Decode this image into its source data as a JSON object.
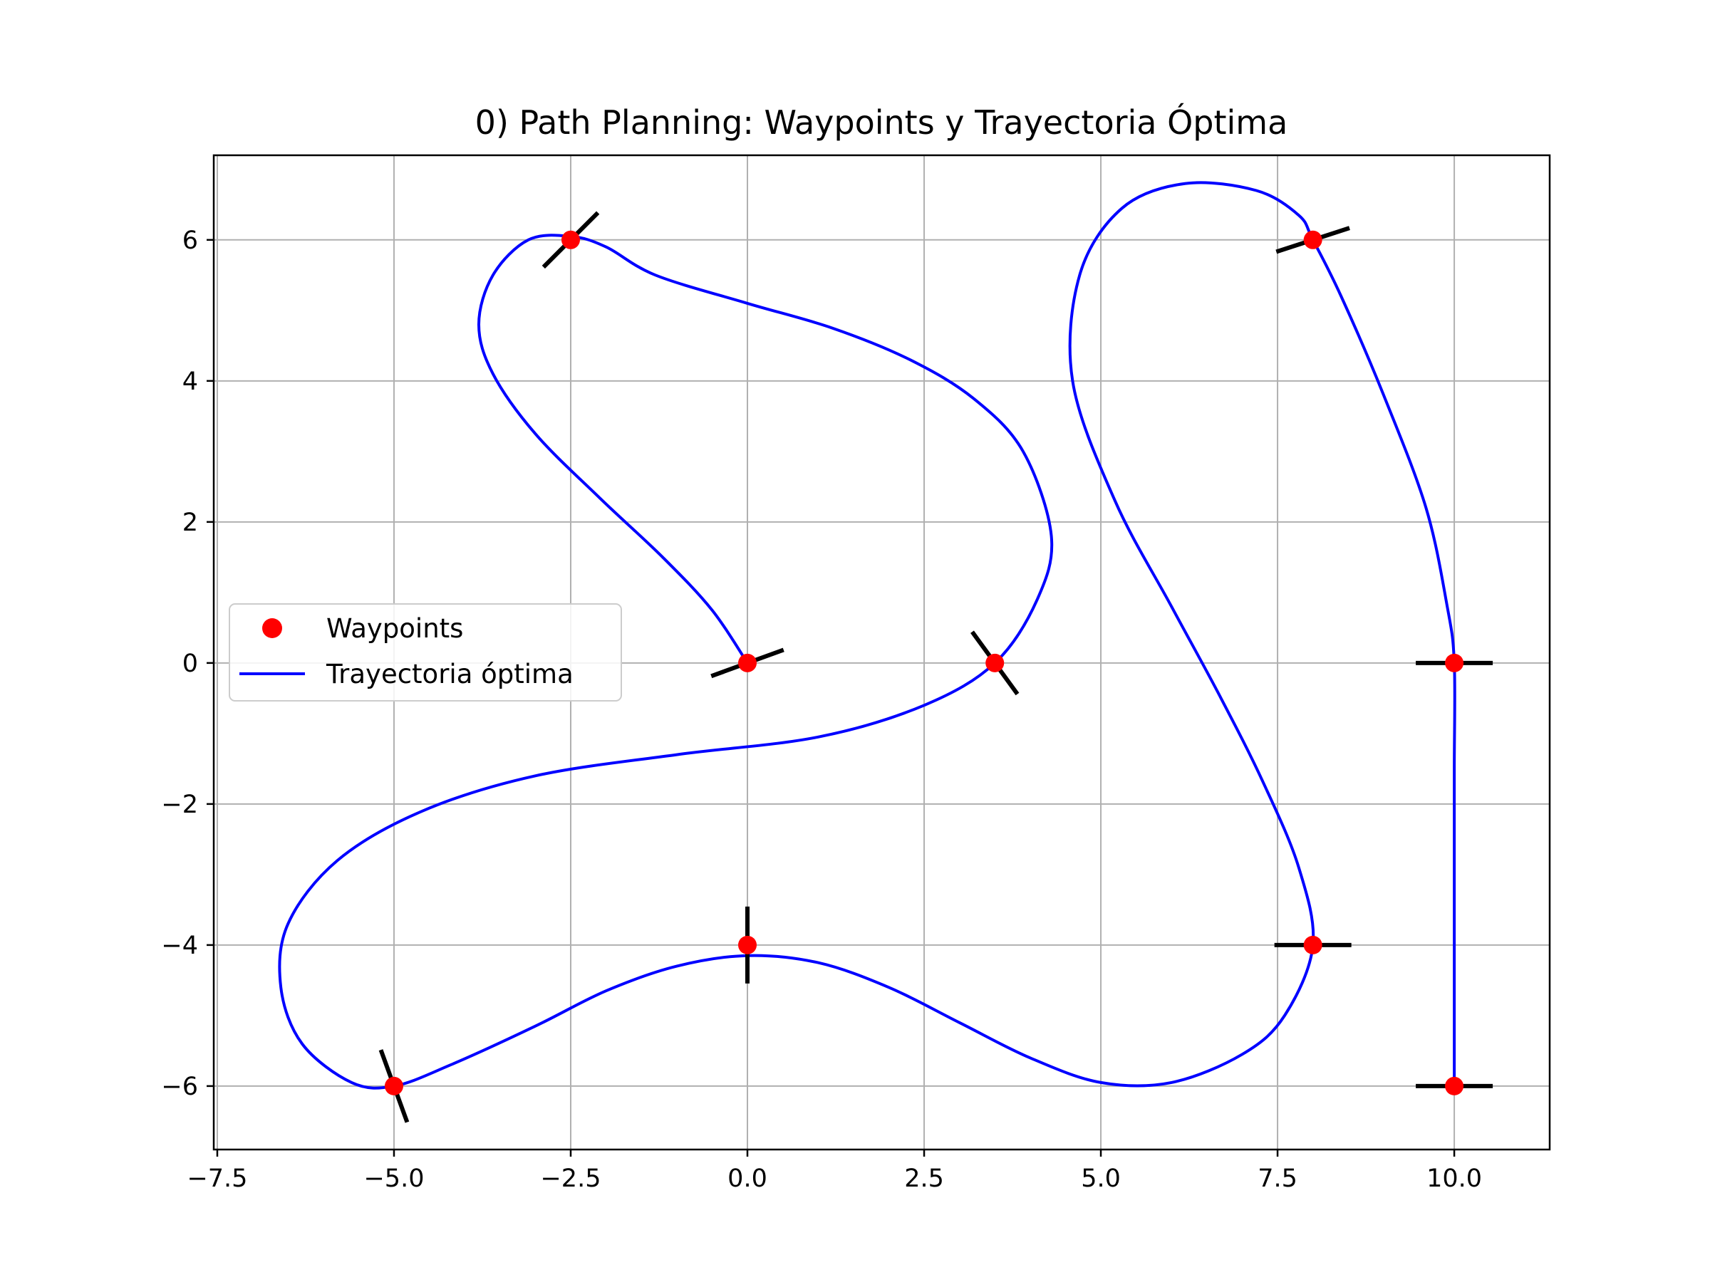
{
  "chart_data": {
    "type": "line",
    "title": "0) Path Planning: Waypoints y Trayectoria Óptima",
    "xlabel": "",
    "ylabel": "",
    "xlim": [
      -7.55,
      11.35
    ],
    "ylim": [
      -6.9,
      7.2
    ],
    "grid": true,
    "legend_placement": "center-left",
    "x_ticks": [
      -7.5,
      -5.0,
      -2.5,
      0.0,
      2.5,
      5.0,
      7.5,
      10.0
    ],
    "x_tick_labels": [
      "−7.5",
      "−5.0",
      "−2.5",
      "0.0",
      "2.5",
      "5.0",
      "7.5",
      "10.0"
    ],
    "y_ticks": [
      -6,
      -4,
      -2,
      0,
      2,
      4,
      6
    ],
    "y_tick_labels": [
      "−6",
      "−4",
      "−2",
      "0",
      "2",
      "4",
      "6"
    ],
    "colors": {
      "waypoints": "#ff0000",
      "trajectory": "#0000ff",
      "headings": "#000000"
    },
    "series": [
      {
        "name": "Waypoints",
        "kind": "scatter",
        "points": [
          {
            "x": 0.0,
            "y": 0.0,
            "heading_deg": 20
          },
          {
            "x": -2.5,
            "y": 6.0,
            "heading_deg": 45
          },
          {
            "x": 3.5,
            "y": 0.0,
            "heading_deg": -54
          },
          {
            "x": -5.0,
            "y": -6.0,
            "heading_deg": -70
          },
          {
            "x": 0.0,
            "y": -4.0,
            "heading_deg": 90
          },
          {
            "x": 8.0,
            "y": -4.0,
            "heading_deg": 0
          },
          {
            "x": 8.0,
            "y": 6.0,
            "heading_deg": 18
          },
          {
            "x": 10.0,
            "y": 0.0,
            "heading_deg": 0
          },
          {
            "x": 10.0,
            "y": -6.0,
            "heading_deg": 0
          }
        ]
      },
      {
        "name": "Trayectoria óptima",
        "kind": "line",
        "points": [
          [
            0.0,
            0.0
          ],
          [
            -0.5,
            0.75
          ],
          [
            -1.2,
            1.5
          ],
          [
            -2.1,
            2.35
          ],
          [
            -3.0,
            3.25
          ],
          [
            -3.6,
            4.1
          ],
          [
            -3.8,
            4.8
          ],
          [
            -3.6,
            5.5
          ],
          [
            -3.1,
            6.0
          ],
          [
            -2.5,
            6.05
          ],
          [
            -2.0,
            5.9
          ],
          [
            -1.3,
            5.5
          ],
          [
            0.0,
            5.1
          ],
          [
            1.2,
            4.75
          ],
          [
            2.3,
            4.3
          ],
          [
            3.2,
            3.75
          ],
          [
            3.9,
            3.0
          ],
          [
            4.3,
            1.8
          ],
          [
            4.1,
            0.9
          ],
          [
            3.5,
            0.0
          ],
          [
            2.5,
            -0.6
          ],
          [
            1.0,
            -1.05
          ],
          [
            -1.0,
            -1.3
          ],
          [
            -3.0,
            -1.6
          ],
          [
            -4.6,
            -2.1
          ],
          [
            -5.8,
            -2.8
          ],
          [
            -6.5,
            -3.7
          ],
          [
            -6.6,
            -4.6
          ],
          [
            -6.3,
            -5.4
          ],
          [
            -5.6,
            -5.95
          ],
          [
            -5.0,
            -6.0
          ],
          [
            -4.2,
            -5.7
          ],
          [
            -3.0,
            -5.15
          ],
          [
            -2.0,
            -4.65
          ],
          [
            -1.0,
            -4.3
          ],
          [
            0.0,
            -4.15
          ],
          [
            1.0,
            -4.25
          ],
          [
            2.0,
            -4.6
          ],
          [
            3.0,
            -5.1
          ],
          [
            4.0,
            -5.6
          ],
          [
            5.0,
            -5.95
          ],
          [
            6.0,
            -5.95
          ],
          [
            7.0,
            -5.55
          ],
          [
            7.6,
            -5.0
          ],
          [
            8.0,
            -4.0
          ],
          [
            7.8,
            -2.9
          ],
          [
            7.3,
            -1.7
          ],
          [
            6.7,
            -0.5
          ],
          [
            6.0,
            0.8
          ],
          [
            5.2,
            2.3
          ],
          [
            4.6,
            4.0
          ],
          [
            4.7,
            5.5
          ],
          [
            5.3,
            6.45
          ],
          [
            6.2,
            6.8
          ],
          [
            7.2,
            6.7
          ],
          [
            7.8,
            6.35
          ],
          [
            8.0,
            6.0
          ],
          [
            8.4,
            5.2
          ],
          [
            9.0,
            3.8
          ],
          [
            9.6,
            2.2
          ],
          [
            9.9,
            0.8
          ],
          [
            10.0,
            0.0
          ],
          [
            10.0,
            -1.5
          ],
          [
            10.0,
            -3.0
          ],
          [
            10.0,
            -4.5
          ],
          [
            10.0,
            -6.0
          ]
        ]
      }
    ]
  }
}
